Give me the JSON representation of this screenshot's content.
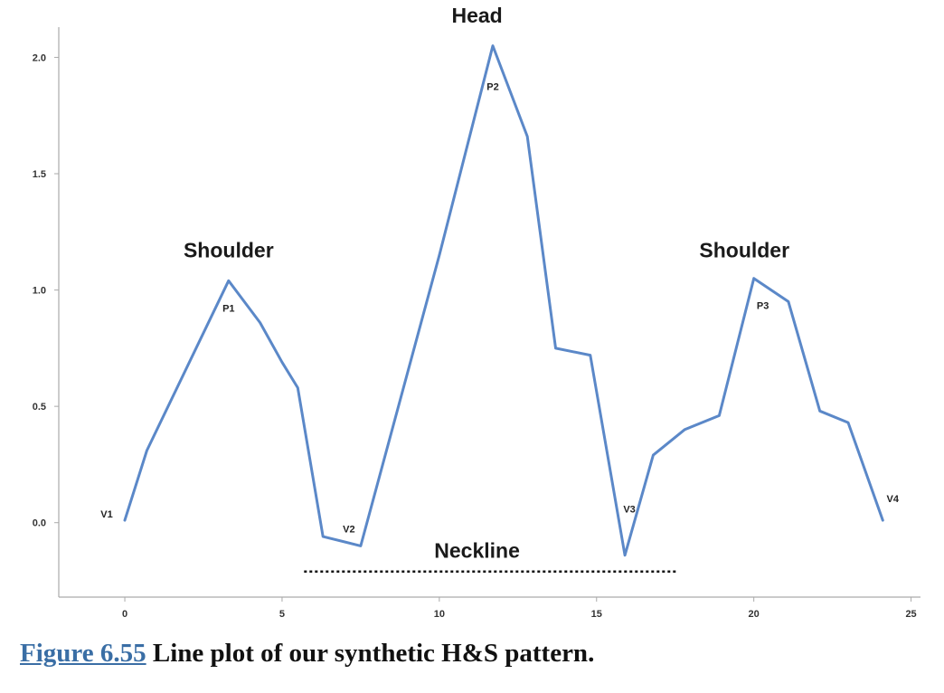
{
  "chart_data": {
    "type": "line",
    "title": "",
    "xlabel": "",
    "ylabel": "",
    "xlim": [
      -2.1,
      25.3
    ],
    "ylim": [
      -0.32,
      2.13
    ],
    "x_ticks": [
      0,
      5,
      10,
      15,
      20,
      25
    ],
    "y_ticks": [
      0.0,
      0.5,
      1.0,
      1.5,
      2.0
    ],
    "x_tick_labels": [
      "0",
      "5",
      "10",
      "15",
      "20",
      "25"
    ],
    "y_tick_labels": [
      "0.0",
      "0.5",
      "1.0",
      "1.5",
      "2.0"
    ],
    "grid": false,
    "line_color": "#5b88c8",
    "series": [
      {
        "x": [
          0,
          0.7,
          3.3,
          4.3,
          5.0,
          5.5,
          6.3,
          7.5,
          10.0,
          11.7,
          12.8,
          13.7,
          14.8,
          15.9,
          16.8,
          17.8,
          18.9,
          20.0,
          21.1,
          22.1,
          23.0,
          24.1
        ],
        "y": [
          0.01,
          0.31,
          1.04,
          0.86,
          0.69,
          0.58,
          -0.06,
          -0.1,
          1.15,
          2.05,
          1.66,
          0.75,
          0.72,
          -0.14,
          0.29,
          0.4,
          0.46,
          1.05,
          0.95,
          0.48,
          0.43,
          0.01
        ]
      }
    ],
    "point_labels": [
      {
        "text": "V1",
        "x": 0.0,
        "y": 0.01
      },
      {
        "text": "P1",
        "x": 3.3,
        "y": 1.04
      },
      {
        "text": "V2",
        "x": 7.5,
        "y": -0.1
      },
      {
        "text": "P2",
        "x": 11.7,
        "y": 2.05
      },
      {
        "text": "V3",
        "x": 15.9,
        "y": -0.14
      },
      {
        "text": "P3",
        "x": 20.0,
        "y": 1.05
      },
      {
        "text": "V4",
        "x": 24.1,
        "y": 0.01
      }
    ],
    "annotations": [
      {
        "text": "Shoulder",
        "x": 3.3,
        "y": 1.14
      },
      {
        "text": "Head",
        "x": 11.2,
        "y": 2.15
      },
      {
        "text": "Shoulder",
        "x": 19.7,
        "y": 1.14
      },
      {
        "text": "Neckline",
        "x": 11.2,
        "y": -0.15
      }
    ],
    "neckline": {
      "x": [
        5.7,
        17.6
      ],
      "y": -0.21
    }
  },
  "caption": {
    "link": "Figure 6.55",
    "text": " Line plot of our synthetic H&S pattern."
  }
}
